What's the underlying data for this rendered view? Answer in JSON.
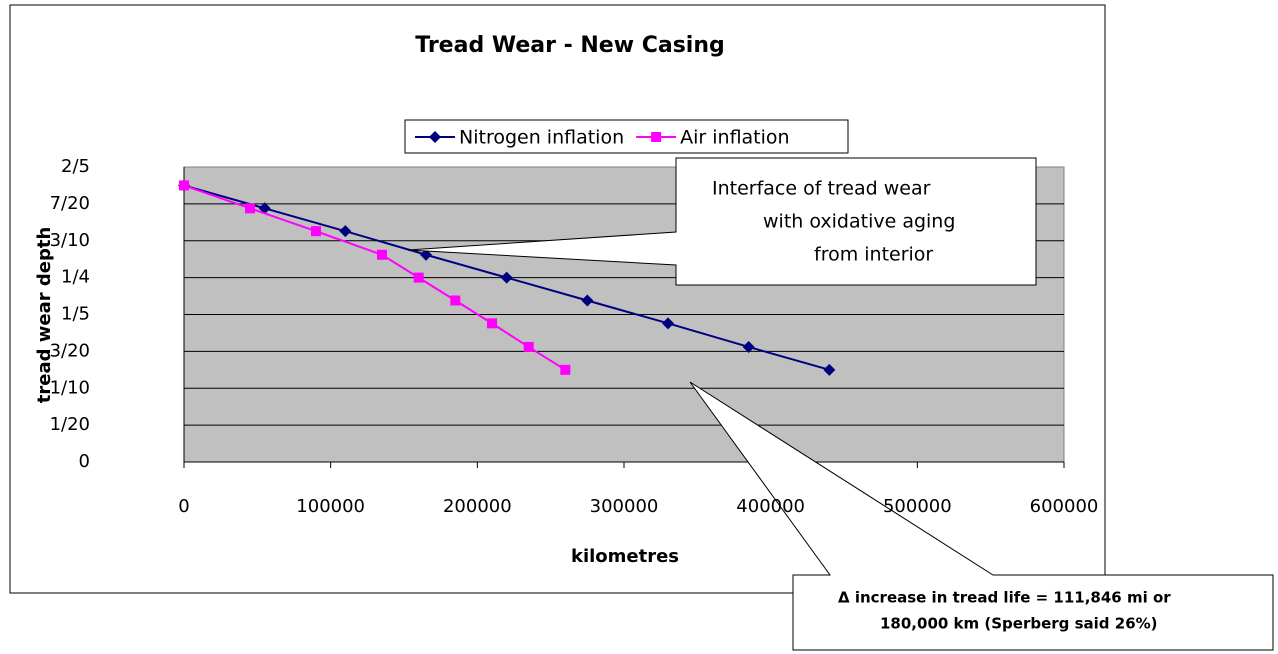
{
  "chart_data": {
    "type": "line",
    "title": "Tread Wear - New Casing",
    "x_label": "kilometres",
    "y_label": "tread wear depth",
    "xlim": [
      0,
      600000
    ],
    "xticks": [
      0,
      100000,
      200000,
      300000,
      400000,
      500000,
      600000
    ],
    "ylim": [
      0,
      0.4
    ],
    "yticks": [
      0,
      {
        "value": 0.05,
        "label": "1/20"
      },
      {
        "value": 0.1,
        "label": "1/10"
      },
      {
        "value": 0.15,
        "label": "3/20"
      },
      {
        "value": 0.2,
        "label": "1/5"
      },
      {
        "value": 0.25,
        "label": "1/4"
      },
      {
        "value": 0.3,
        "label": "3/10"
      },
      {
        "value": 0.35,
        "label": "7/20"
      },
      {
        "value": 0.4,
        "label": "2/5"
      }
    ],
    "grid": true,
    "legend": "top",
    "series": [
      {
        "name": "Nitrogen inflation",
        "color": "#000080",
        "marker": "diamond",
        "x": [
          0,
          55000,
          110000,
          165000,
          220000,
          275000,
          330000,
          385000,
          440000
        ],
        "values": [
          0.375,
          0.344,
          0.313,
          0.281,
          0.25,
          0.219,
          0.188,
          0.156,
          0.125
        ]
      },
      {
        "name": "Air inflation",
        "color": "#ff00ff",
        "marker": "square",
        "x": [
          0,
          45000,
          90000,
          135000,
          160000,
          185000,
          210000,
          235000,
          260000
        ],
        "values": [
          0.375,
          0.344,
          0.313,
          0.281,
          0.25,
          0.219,
          0.188,
          0.156,
          0.125
        ]
      }
    ],
    "annotations": [
      {
        "lines": [
          "Interface of tread wear",
          "with oxidative aging",
          "from interior"
        ]
      },
      {
        "lines": [
          "Δ increase in tread life = 111,846 mi or",
          "180,000 km (Sperberg said 26%)"
        ]
      }
    ]
  }
}
